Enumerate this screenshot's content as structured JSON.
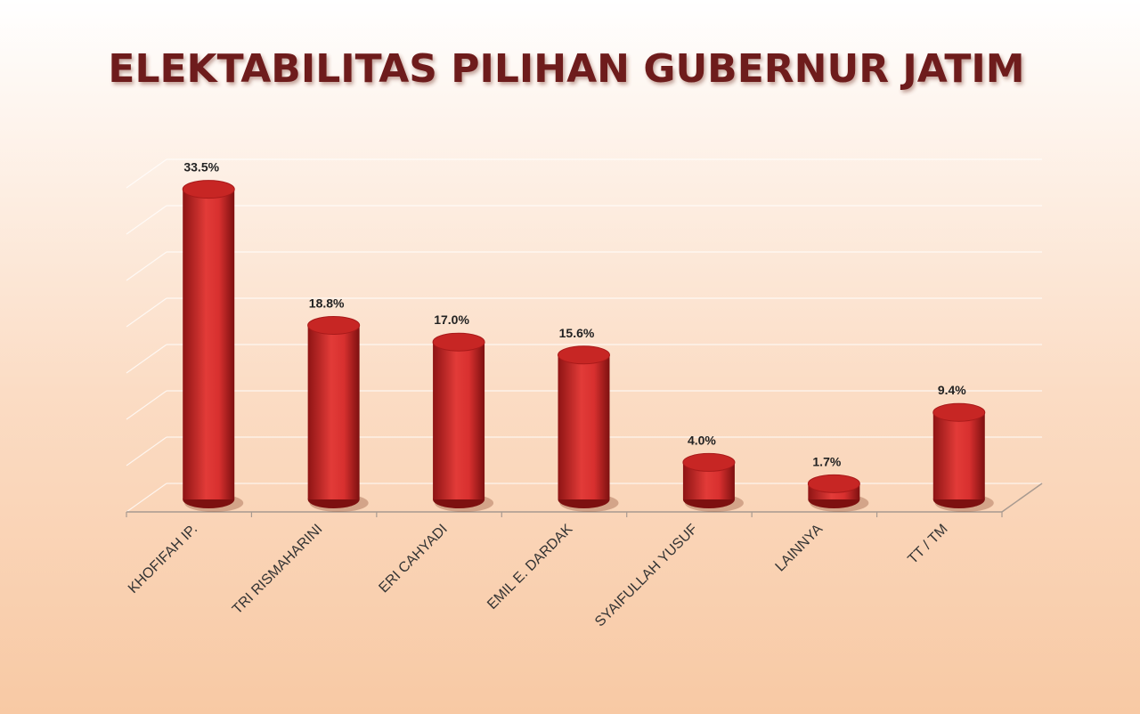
{
  "chart_data": {
    "type": "bar3d",
    "title": "ELEKTABILITAS PILIHAN GUBERNUR JATIM",
    "categories": [
      "KHOFIFAH IP.",
      "TRI RISMAHARINI",
      "ERI CAHYADI",
      "EMIL E. DARDAK",
      "SYAIFULLAH YUSUF",
      "LAINNYA",
      "TT / TM"
    ],
    "values": [
      33.5,
      18.8,
      17.0,
      15.6,
      4.0,
      1.7,
      9.4
    ],
    "value_labels": [
      "33.5%",
      "18.8%",
      "17.0%",
      "15.6%",
      "4.0%",
      "1.7%",
      "9.4%"
    ],
    "color": "#d8302f",
    "ylim": [
      0,
      40
    ],
    "yticks": [
      0,
      5,
      10,
      15,
      20,
      25,
      30,
      35
    ],
    "grid": true
  }
}
